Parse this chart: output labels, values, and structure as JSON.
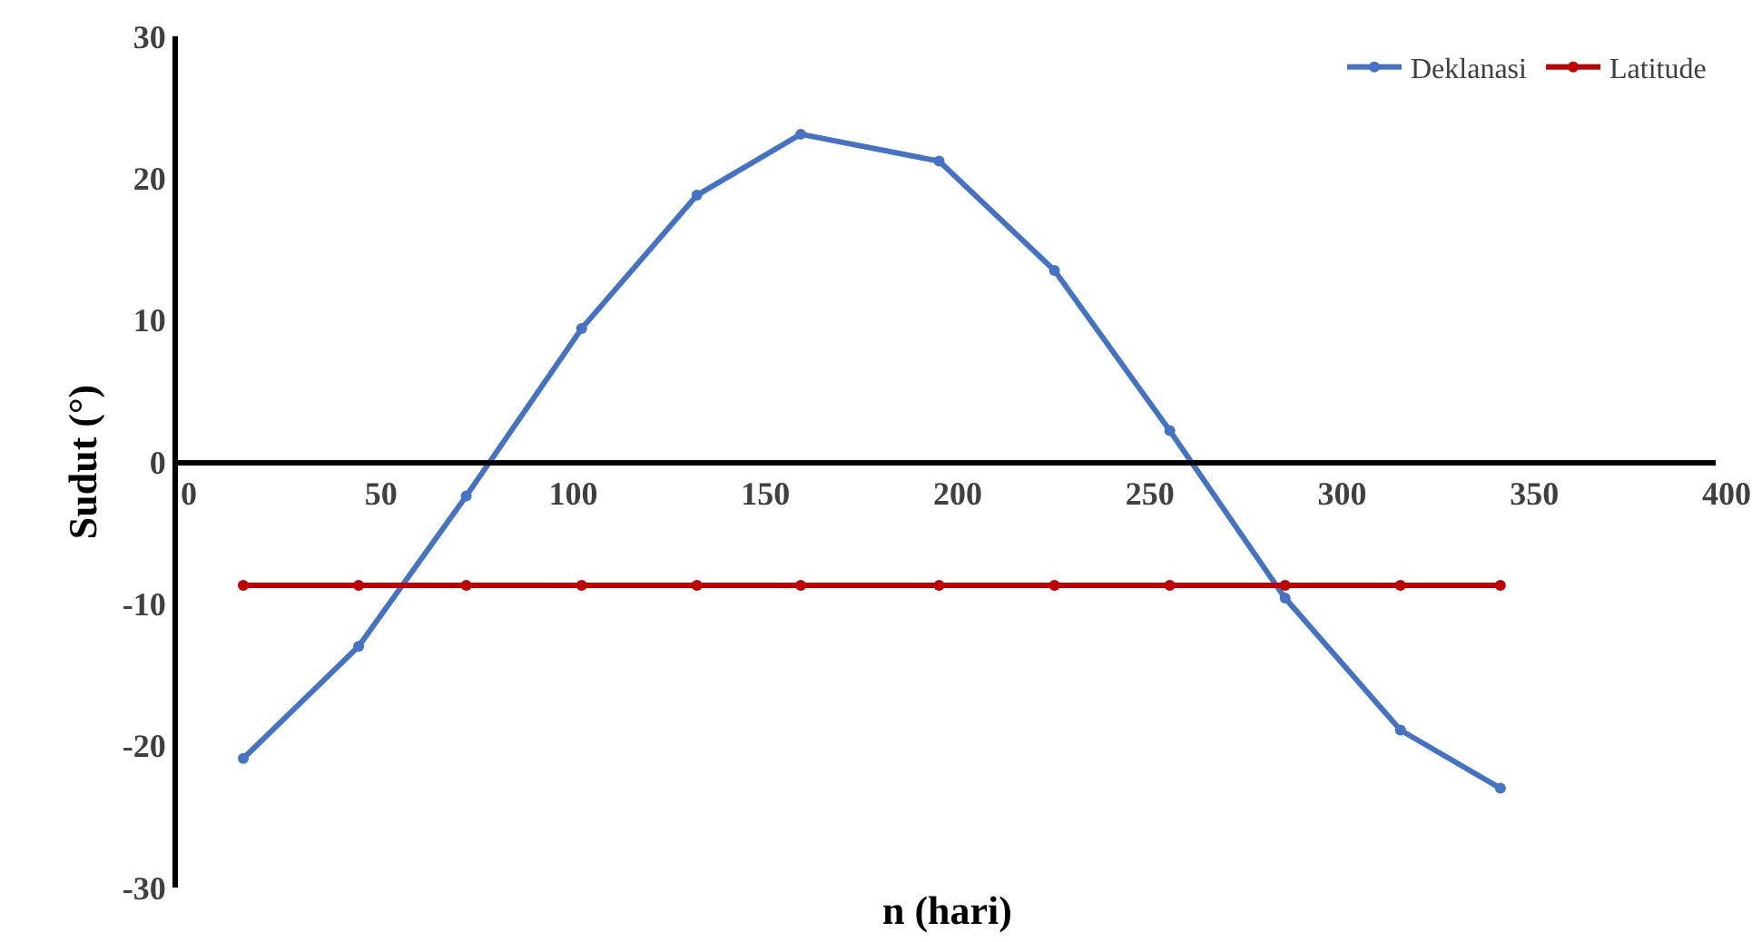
{
  "chart_data": {
    "type": "line",
    "xlabel": "n (hari)",
    "ylabel": "Sudut (°)",
    "series": [
      {
        "name": "Deklanasi",
        "color": "#4472c4",
        "x": [
          17,
          47,
          75,
          105,
          135,
          162,
          198,
          228,
          258,
          288,
          318,
          344
        ],
        "values": [
          -20.9,
          -13.0,
          -2.4,
          9.4,
          18.8,
          23.1,
          21.2,
          13.5,
          2.2,
          -9.6,
          -18.9,
          -23.0
        ]
      },
      {
        "name": "Latitude",
        "color": "#c00000",
        "x": [
          17,
          47,
          75,
          105,
          135,
          162,
          198,
          228,
          258,
          288,
          318,
          344
        ],
        "values": [
          -8.7,
          -8.7,
          -8.7,
          -8.7,
          -8.7,
          -8.7,
          -8.7,
          -8.7,
          -8.7,
          -8.7,
          -8.7,
          -8.7
        ]
      }
    ],
    "xlim": [
      0,
      400
    ],
    "xticks": [
      0,
      50,
      100,
      150,
      200,
      250,
      300,
      350,
      400
    ],
    "ylim": [
      -30,
      30
    ],
    "yticks": [
      -30,
      -20,
      -10,
      0,
      10,
      20,
      30
    ],
    "grid": false,
    "legend": "top right",
    "marker": "circle",
    "line_style": "solid"
  }
}
